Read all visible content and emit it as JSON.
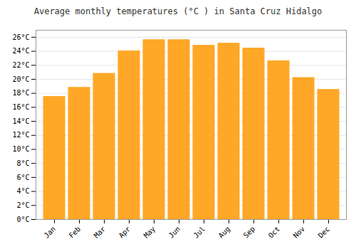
{
  "chart_data": {
    "type": "bar",
    "title": "Average monthly temperatures (°C ) in Santa Cruz Hidalgo",
    "categories": [
      "Jan",
      "Feb",
      "Mar",
      "Apr",
      "May",
      "Jun",
      "Jul",
      "Aug",
      "Sep",
      "Oct",
      "Nov",
      "Dec"
    ],
    "values": [
      17.5,
      18.8,
      20.8,
      24.0,
      25.6,
      25.6,
      24.8,
      25.1,
      24.4,
      22.6,
      20.2,
      18.5
    ],
    "color": "#FFA726",
    "ylim": [
      0,
      27
    ],
    "yticks": [
      {
        "value": 0,
        "label": "0°C"
      },
      {
        "value": 2,
        "label": "2°C"
      },
      {
        "value": 4,
        "label": "4°C"
      },
      {
        "value": 6,
        "label": "6°C"
      },
      {
        "value": 8,
        "label": "8°C"
      },
      {
        "value": 10,
        "label": "10°C"
      },
      {
        "value": 12,
        "label": "12°C"
      },
      {
        "value": 14,
        "label": "14°C"
      },
      {
        "value": 16,
        "label": "16°C"
      },
      {
        "value": 18,
        "label": "18°C"
      },
      {
        "value": 20,
        "label": "20°C"
      },
      {
        "value": 22,
        "label": "22°C"
      },
      {
        "value": 24,
        "label": "24°C"
      },
      {
        "value": 26,
        "label": "26°C"
      }
    ],
    "grid": true
  }
}
